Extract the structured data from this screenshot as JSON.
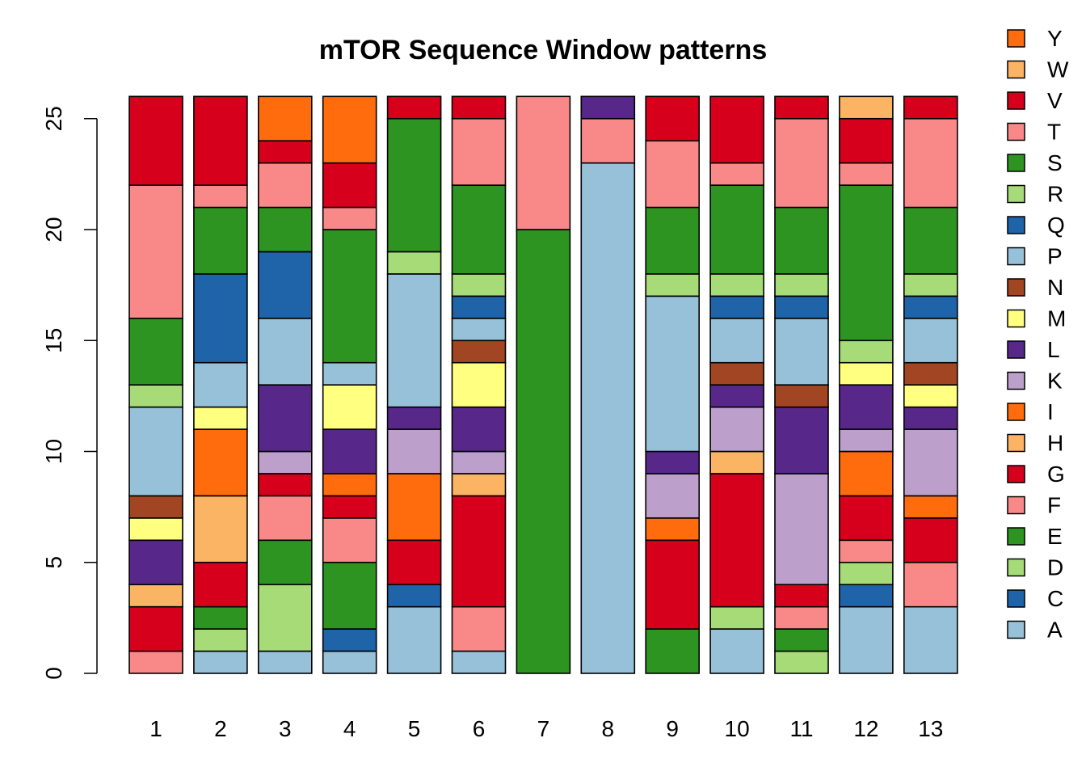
{
  "chart_data": {
    "type": "bar",
    "stacked": true,
    "title": "mTOR Sequence Window patterns",
    "xlabel": "",
    "ylabel": "",
    "categories": [
      "1",
      "2",
      "3",
      "4",
      "5",
      "6",
      "7",
      "8",
      "9",
      "10",
      "11",
      "12",
      "13"
    ],
    "ylim": [
      0,
      26
    ],
    "yticks": [
      0,
      5,
      10,
      15,
      20,
      25
    ],
    "legend_position": "right",
    "legend_order": [
      "Y",
      "W",
      "V",
      "T",
      "S",
      "R",
      "Q",
      "P",
      "N",
      "M",
      "L",
      "K",
      "I",
      "H",
      "G",
      "F",
      "E",
      "D",
      "C",
      "A"
    ],
    "series": [
      {
        "name": "A",
        "color": "#97c1d9",
        "values": [
          0,
          1,
          1,
          1,
          3,
          1,
          0,
          23,
          0,
          2,
          0,
          3,
          3
        ]
      },
      {
        "name": "C",
        "color": "#1f63a8",
        "values": [
          0,
          0,
          0,
          1,
          1,
          0,
          0,
          0,
          0,
          0,
          0,
          1,
          0
        ]
      },
      {
        "name": "D",
        "color": "#a6db78",
        "values": [
          0,
          1,
          3,
          0,
          0,
          0,
          0,
          0,
          0,
          1,
          1,
          1,
          0
        ]
      },
      {
        "name": "E",
        "color": "#2e9421",
        "values": [
          0,
          1,
          2,
          3,
          0,
          0,
          20,
          0,
          2,
          0,
          1,
          0,
          0
        ]
      },
      {
        "name": "F",
        "color": "#f98889",
        "values": [
          1,
          0,
          2,
          2,
          0,
          2,
          0,
          2,
          0,
          0,
          1,
          1,
          2
        ]
      },
      {
        "name": "G",
        "color": "#d7001c",
        "values": [
          2,
          2,
          1,
          1,
          2,
          5,
          0,
          0,
          4,
          6,
          1,
          2,
          2
        ]
      },
      {
        "name": "H",
        "color": "#fbb364",
        "values": [
          1,
          3,
          0,
          0,
          0,
          1,
          0,
          0,
          0,
          1,
          0,
          0,
          0
        ]
      },
      {
        "name": "I",
        "color": "#ff6c0d",
        "values": [
          0,
          3,
          0,
          1,
          3,
          0,
          0,
          0,
          1,
          0,
          0,
          2,
          1
        ]
      },
      {
        "name": "K",
        "color": "#bd9fcb",
        "values": [
          0,
          0,
          1,
          0,
          2,
          1,
          0,
          0,
          2,
          2,
          5,
          1,
          3
        ]
      },
      {
        "name": "L",
        "color": "#572889",
        "values": [
          2,
          0,
          3,
          2,
          1,
          2,
          0,
          1,
          1,
          1,
          3,
          2,
          1
        ]
      },
      {
        "name": "M",
        "color": "#ffff80",
        "values": [
          1,
          1,
          0,
          2,
          0,
          2,
          0,
          0,
          0,
          0,
          0,
          1,
          1
        ]
      },
      {
        "name": "N",
        "color": "#a24522",
        "values": [
          1,
          0,
          0,
          0,
          0,
          1,
          0,
          0,
          0,
          1,
          1,
          0,
          1
        ]
      },
      {
        "name": "P",
        "color": "#97c1d9",
        "values": [
          4,
          2,
          3,
          1,
          6,
          1,
          0,
          0,
          7,
          2,
          3,
          0,
          2
        ]
      },
      {
        "name": "Q",
        "color": "#1f63a8",
        "values": [
          0,
          4,
          3,
          0,
          0,
          1,
          0,
          0,
          0,
          1,
          1,
          0,
          1
        ]
      },
      {
        "name": "R",
        "color": "#a6db78",
        "values": [
          1,
          0,
          0,
          0,
          1,
          1,
          0,
          0,
          1,
          1,
          1,
          1,
          1
        ]
      },
      {
        "name": "S",
        "color": "#2e9421",
        "values": [
          3,
          3,
          2,
          6,
          6,
          4,
          0,
          0,
          3,
          4,
          3,
          7,
          3
        ]
      },
      {
        "name": "T",
        "color": "#f98889",
        "values": [
          6,
          1,
          2,
          1,
          0,
          3,
          6,
          0,
          3,
          1,
          4,
          1,
          4
        ]
      },
      {
        "name": "V",
        "color": "#d7001c",
        "values": [
          4,
          4,
          1,
          2,
          1,
          1,
          0,
          0,
          2,
          3,
          1,
          2,
          1
        ]
      },
      {
        "name": "W",
        "color": "#fbb364",
        "values": [
          0,
          0,
          0,
          0,
          0,
          0,
          0,
          0,
          0,
          0,
          0,
          1,
          0
        ]
      },
      {
        "name": "Y",
        "color": "#ff6c0d",
        "values": [
          0,
          0,
          2,
          3,
          0,
          0,
          0,
          0,
          0,
          0,
          0,
          0,
          0
        ]
      }
    ]
  }
}
